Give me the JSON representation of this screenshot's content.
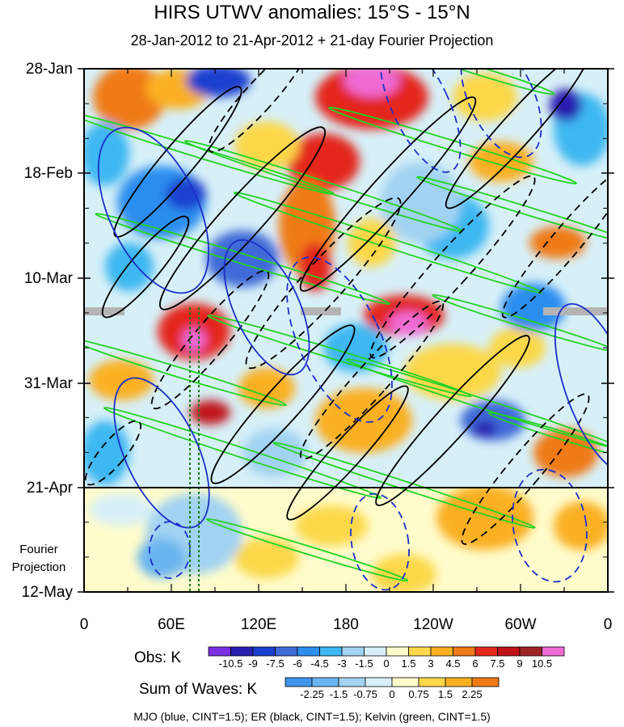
{
  "title": "HIRS UTWV anomalies: 15°S - 15°N",
  "subtitle": "28-Jan-2012 to 21-Apr-2012 + 21-day Fourier Projection",
  "y_axis": {
    "tick_labels": [
      "28-Jan",
      "18-Feb",
      "10-Mar",
      "31-Mar",
      "21-Apr",
      "12-May"
    ],
    "projection_label_line1": "Fourier",
    "projection_label_line2": "Projection"
  },
  "x_axis": {
    "tick_labels": [
      "0",
      "60E",
      "120E",
      "180",
      "120W",
      "60W",
      "0"
    ]
  },
  "obs_colorbar": {
    "label": "Obs: K",
    "tick_labels": [
      "-10.5",
      "-9",
      "-7.5",
      "-6",
      "-4.5",
      "-3",
      "-1.5",
      "0",
      "1.5",
      "3",
      "4.5",
      "6",
      "7.5",
      "9",
      "10.5"
    ],
    "colors": [
      "#7a2fe0",
      "#2a1fb0",
      "#1a3fcf",
      "#3f6ad8",
      "#2c8ef0",
      "#3db8f2",
      "#a2d3f2",
      "#d7f0f8",
      "#fffccc",
      "#fcd84a",
      "#fbb022",
      "#f07a18",
      "#e4281c",
      "#c0121a",
      "#9e2226",
      "#f06ad4"
    ]
  },
  "waves_colorbar": {
    "label": "Sum of Waves: K",
    "tick_labels": [
      "-2.25",
      "-1.5",
      "-0.75",
      "0",
      "0.75",
      "1.5",
      "2.25"
    ],
    "colors": [
      "#3d95ea",
      "#6ab5f0",
      "#a2d3f2",
      "#d7f0f8",
      "#fffccc",
      "#fcd84a",
      "#fbb022",
      "#f07a18"
    ]
  },
  "footnote": "MJO (blue, CINT=1.5); ER (black, CINT=1.5); Kelvin (green, CINT=1.5)",
  "chart_data": {
    "type": "heatmap",
    "title": "HIRS UTWV anomalies: 15°S - 15°N",
    "subtitle": "28-Jan-2012 to 21-Apr-2012 + 21-day Fourier Projection",
    "x": {
      "ticks": [
        "0",
        "60E",
        "120E",
        "180",
        "120W",
        "60W",
        "0"
      ],
      "range_deg_east": [
        0,
        360
      ]
    },
    "y": {
      "ticks": [
        "28-Jan",
        "18-Feb",
        "10-Mar",
        "31-Mar",
        "21-Apr",
        "12-May"
      ],
      "range": [
        "2012-01-28",
        "2012-05-12"
      ],
      "observation_end": "2012-04-21",
      "direction": "downward"
    },
    "shading": "Obs: K",
    "contours": [
      "MJO (blue, CINT=1.5)",
      "ER (black, CINT=1.5)",
      "Kelvin (green, CINT=1.5)"
    ],
    "reference_longitudes_dotted": [
      "75E",
      "80E"
    ]
  }
}
